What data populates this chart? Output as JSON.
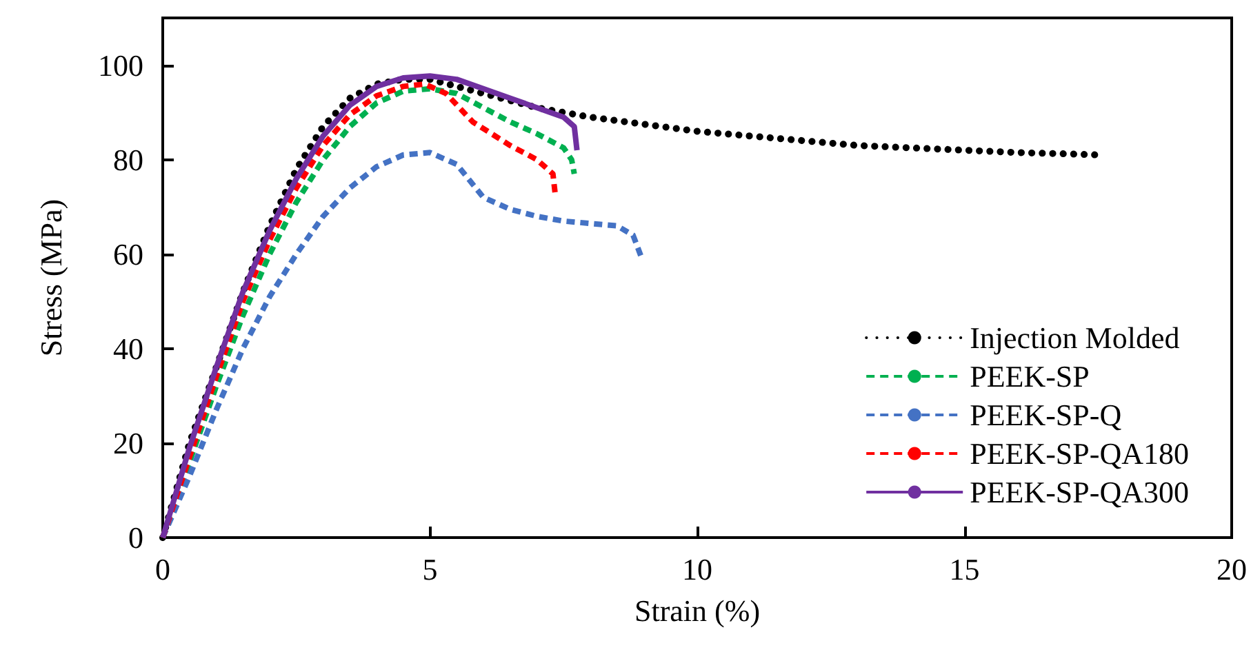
{
  "chart_data": {
    "type": "line",
    "xlabel": "Strain (%)",
    "ylabel": "Stress (MPa)",
    "xlim": [
      0,
      20
    ],
    "xticks": [
      0,
      5,
      10,
      15,
      20
    ],
    "ylim": [
      0,
      110
    ],
    "yticks": [
      0,
      20,
      40,
      60,
      80,
      100
    ],
    "grid": false,
    "legend": "bottom right",
    "marker": "none",
    "series": [
      {
        "name": "Injection Molded",
        "color": "#000000",
        "line_style": "dotted",
        "x": [
          0,
          0.5,
          1,
          1.5,
          2,
          2.5,
          3,
          3.5,
          4,
          4.5,
          5,
          6,
          7,
          8,
          9,
          10,
          11,
          12,
          13,
          14,
          15,
          16,
          17,
          17.5
        ],
        "values": [
          0,
          20,
          36,
          52,
          66,
          78,
          87,
          93,
          96,
          97,
          97,
          94,
          91,
          89,
          87.5,
          86,
          85,
          84,
          83,
          82.5,
          82,
          81.5,
          81.2,
          81
        ]
      },
      {
        "name": "PEEK-SP",
        "color": "#00b050",
        "line_style": "dashed",
        "x": [
          0,
          0.5,
          1,
          1.5,
          2,
          2.5,
          3,
          3.5,
          4,
          4.5,
          5,
          5.5,
          6,
          6.5,
          7,
          7.5,
          7.65,
          7.7
        ],
        "values": [
          0,
          16,
          32,
          47,
          60,
          71,
          80,
          87,
          92,
          94.5,
          95,
          94,
          91,
          88,
          85.5,
          82.5,
          80,
          77
        ]
      },
      {
        "name": "PEEK-SP-Q",
        "color": "#4472c4",
        "line_style": "dashed",
        "x": [
          0,
          0.5,
          1,
          1.5,
          2,
          2.5,
          3,
          3.5,
          4,
          4.5,
          5,
          5.5,
          6,
          6.5,
          7,
          7.5,
          8,
          8.5,
          8.8,
          8.95
        ],
        "values": [
          0,
          13,
          27,
          40,
          51,
          60,
          68,
          74,
          78.5,
          81,
          81.5,
          79,
          72,
          69.5,
          68,
          67,
          66.5,
          66,
          64,
          59.5
        ]
      },
      {
        "name": "PEEK-SP-QA180",
        "color": "#ff0000",
        "line_style": "dashed",
        "x": [
          0,
          0.5,
          1,
          1.5,
          2,
          2.5,
          3,
          3.5,
          4,
          4.5,
          4.9,
          5.3,
          5.8,
          6.5,
          7,
          7.3,
          7.35
        ],
        "values": [
          0,
          17,
          34,
          50,
          63,
          74,
          83,
          89.5,
          93.5,
          95.5,
          96,
          94,
          88,
          83,
          80,
          77,
          72
        ]
      },
      {
        "name": "PEEK-SP-QA300",
        "color": "#7030a0",
        "line_style": "solid",
        "x": [
          0,
          0.5,
          1,
          1.5,
          2,
          2.5,
          3,
          3.5,
          4,
          4.5,
          5,
          5.5,
          6,
          6.5,
          7,
          7.5,
          7.7,
          7.75
        ],
        "values": [
          0,
          19,
          36,
          52,
          65,
          76,
          85,
          91.5,
          95.5,
          97.3,
          97.7,
          97,
          95,
          93,
          91,
          89,
          87,
          82
        ]
      }
    ]
  }
}
